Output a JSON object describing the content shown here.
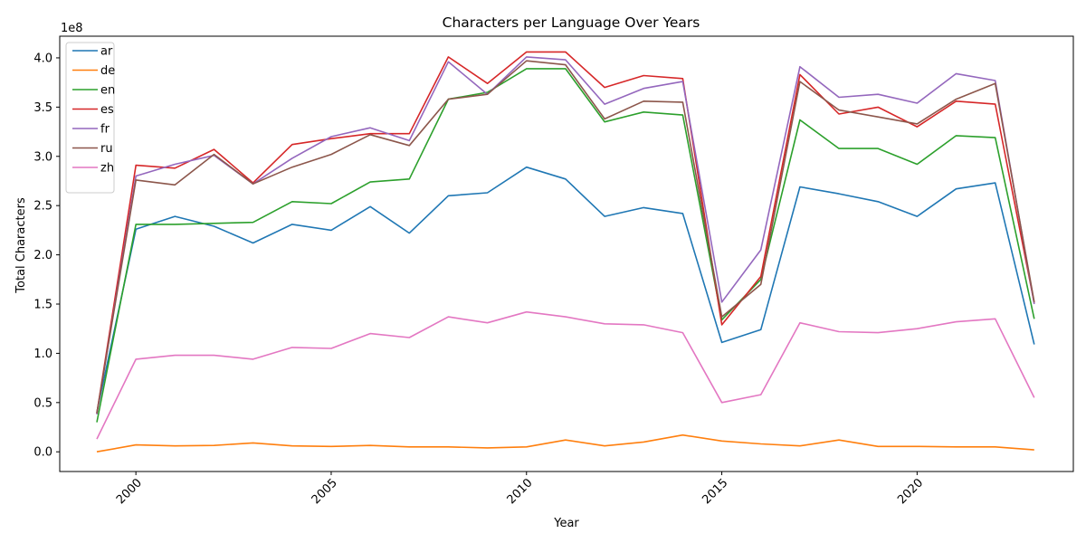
{
  "chart_data": {
    "type": "line",
    "title": "Characters per Language Over Years",
    "xlabel": "Year",
    "ylabel": "Total Characters",
    "y_multiplier_label": "1e8",
    "x": [
      1999,
      2000,
      2001,
      2002,
      2003,
      2004,
      2005,
      2006,
      2007,
      2008,
      2009,
      2010,
      2011,
      2012,
      2013,
      2014,
      2015,
      2016,
      2017,
      2018,
      2019,
      2020,
      2021,
      2022,
      2023
    ],
    "xlim": [
      1998.05,
      2024.0
    ],
    "ylim": [
      -0.2,
      4.22
    ],
    "x_ticks": [
      2000,
      2005,
      2010,
      2015,
      2020
    ],
    "x_tick_labels": [
      "2000",
      "2005",
      "2010",
      "2015",
      "2020"
    ],
    "y_ticks": [
      0.0,
      0.5,
      1.0,
      1.5,
      2.0,
      2.5,
      3.0,
      3.5,
      4.0
    ],
    "y_tick_labels": [
      "0.0",
      "0.5",
      "1.0",
      "1.5",
      "2.0",
      "2.5",
      "3.0",
      "3.5",
      "4.0"
    ],
    "grid": false,
    "legend_position": "top-left",
    "series": [
      {
        "name": "ar",
        "color": "#1f77b4",
        "values": [
          0.4,
          2.26,
          2.39,
          2.29,
          2.12,
          2.31,
          2.25,
          2.49,
          2.22,
          2.6,
          2.63,
          2.89,
          2.77,
          2.39,
          2.48,
          2.42,
          1.11,
          1.24,
          2.69,
          2.62,
          2.54,
          2.39,
          2.67,
          2.73,
          1.09
        ]
      },
      {
        "name": "de",
        "color": "#ff7f0e",
        "values": [
          0.0,
          0.07,
          0.06,
          0.065,
          0.09,
          0.06,
          0.055,
          0.065,
          0.05,
          0.05,
          0.04,
          0.05,
          0.12,
          0.06,
          0.1,
          0.17,
          0.11,
          0.08,
          0.06,
          0.12,
          0.055,
          0.055,
          0.05,
          0.05,
          0.02
        ]
      },
      {
        "name": "en",
        "color": "#2ca02c",
        "values": [
          0.3,
          2.31,
          2.31,
          2.32,
          2.33,
          2.54,
          2.52,
          2.74,
          2.77,
          3.58,
          3.65,
          3.89,
          3.89,
          3.35,
          3.45,
          3.42,
          1.34,
          1.75,
          3.37,
          3.08,
          3.08,
          2.92,
          3.21,
          3.19,
          1.35
        ]
      },
      {
        "name": "es",
        "color": "#d62728",
        "values": [
          0.39,
          2.91,
          2.88,
          3.07,
          2.73,
          3.12,
          3.18,
          3.23,
          3.23,
          4.01,
          3.74,
          4.06,
          4.06,
          3.7,
          3.82,
          3.79,
          1.29,
          1.78,
          3.83,
          3.43,
          3.5,
          3.3,
          3.56,
          3.53,
          1.51
        ]
      },
      {
        "name": "fr",
        "color": "#9467bd",
        "values": [
          0.38,
          2.8,
          2.92,
          3.01,
          2.72,
          2.98,
          3.2,
          3.29,
          3.16,
          3.96,
          3.63,
          4.01,
          3.98,
          3.53,
          3.69,
          3.76,
          1.52,
          2.05,
          3.91,
          3.6,
          3.63,
          3.54,
          3.84,
          3.77,
          1.5
        ]
      },
      {
        "name": "ru",
        "color": "#8c564b",
        "values": [
          0.39,
          2.76,
          2.71,
          3.02,
          2.72,
          2.89,
          3.02,
          3.22,
          3.11,
          3.58,
          3.63,
          3.97,
          3.93,
          3.38,
          3.56,
          3.55,
          1.37,
          1.7,
          3.76,
          3.47,
          3.4,
          3.33,
          3.58,
          3.74,
          1.52
        ]
      },
      {
        "name": "zh",
        "color": "#e377c2",
        "values": [
          0.13,
          0.94,
          0.98,
          0.98,
          0.94,
          1.06,
          1.05,
          1.2,
          1.16,
          1.37,
          1.31,
          1.42,
          1.37,
          1.3,
          1.29,
          1.21,
          0.5,
          0.58,
          1.31,
          1.22,
          1.21,
          1.25,
          1.32,
          1.35,
          0.55
        ]
      }
    ]
  }
}
